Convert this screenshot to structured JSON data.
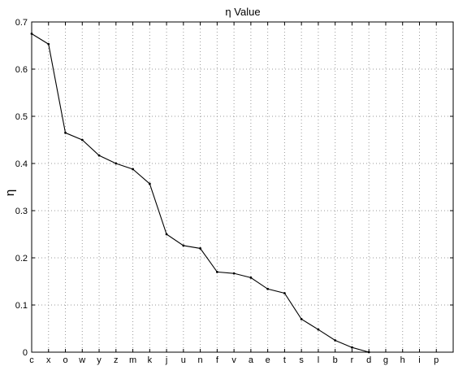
{
  "chart_data": {
    "type": "line",
    "title": "η Value",
    "xlabel": "",
    "ylabel": "η",
    "categories": [
      "c",
      "x",
      "o",
      "w",
      "y",
      "z",
      "m",
      "k",
      "j",
      "u",
      "n",
      "f",
      "v",
      "a",
      "e",
      "t",
      "s",
      "l",
      "b",
      "r",
      "d",
      "g",
      "h",
      "i",
      "p"
    ],
    "series": [
      {
        "values": [
          0.675,
          0.653,
          0.465,
          0.45,
          0.417,
          0.4,
          0.388,
          0.357,
          0.25,
          0.226,
          0.22,
          0.17,
          0.167,
          0.158,
          0.134,
          0.125,
          0.07,
          0.048,
          0.025,
          0.01,
          0.0,
          null,
          null,
          null,
          null
        ]
      }
    ],
    "ylim": [
      0,
      0.7
    ],
    "yticks": [
      "0",
      "0.1",
      "0.2",
      "0.3",
      "0.4",
      "0.5",
      "0.6",
      "0.7"
    ],
    "grid": true,
    "colors": {
      "line": "#000000",
      "grid": "#9a9a9a",
      "background": "#ffffff"
    }
  }
}
